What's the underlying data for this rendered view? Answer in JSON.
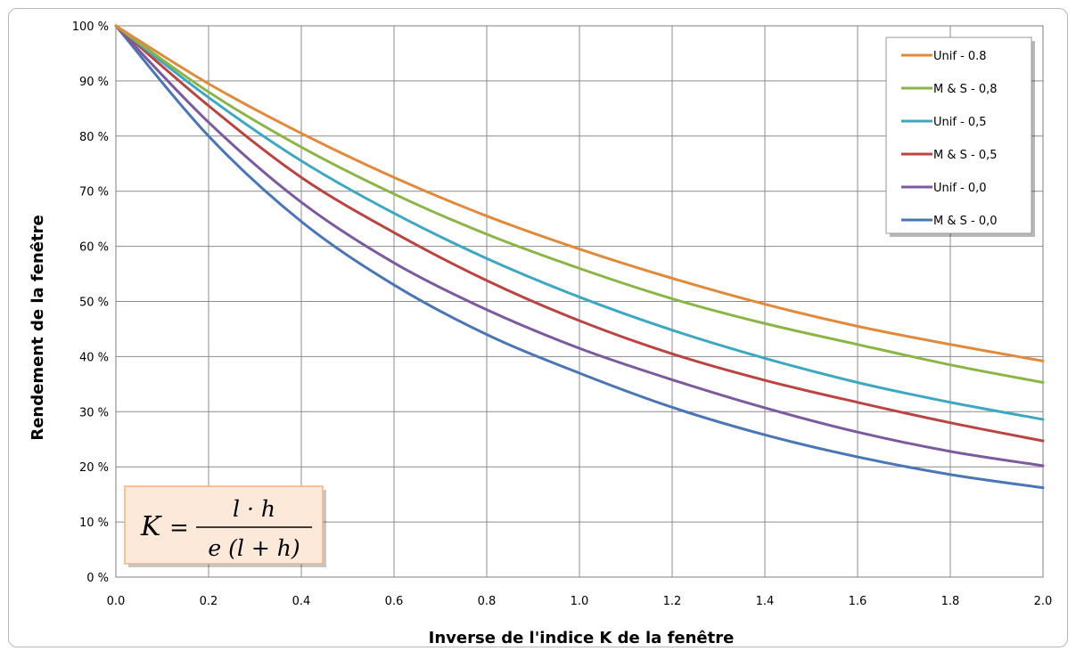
{
  "chart_data": {
    "type": "line",
    "xlabel": "Inverse de l'indice K de la fenêtre",
    "ylabel": "Rendement de la fenêtre",
    "xlim": [
      0,
      2.0
    ],
    "ylim": [
      0,
      100
    ],
    "x_ticks": [
      "0.0",
      "0.2",
      "0.4",
      "0.6",
      "0.8",
      "1.0",
      "1.2",
      "1.4",
      "1.6",
      "1.8",
      "2.0"
    ],
    "y_ticks": [
      "0 %",
      "10 %",
      "20 %",
      "30 %",
      "40 %",
      "50 %",
      "60 %",
      "70 %",
      "80 %",
      "90 %",
      "100 %"
    ],
    "grid": true,
    "legend_position": "top-right",
    "x": [
      0,
      0.2,
      0.4,
      0.6,
      0.8,
      1.0,
      1.2,
      1.4,
      1.6,
      1.8,
      2.0
    ],
    "series": [
      {
        "name": "Unif - 0.8",
        "color": "#e08a3c",
        "values": [
          100,
          89.5,
          80.5,
          72.5,
          65.5,
          59.5,
          54.2,
          49.5,
          45.5,
          42.2,
          39.2
        ]
      },
      {
        "name": "M & S - 0,8",
        "color": "#8cb548",
        "values": [
          100,
          88.0,
          78.0,
          69.5,
          62.2,
          56.0,
          50.5,
          46.0,
          42.2,
          38.5,
          35.3
        ]
      },
      {
        "name": "Unif - 0,5",
        "color": "#3ea7c2",
        "values": [
          100,
          87.0,
          75.5,
          66.0,
          57.8,
          50.8,
          44.8,
          39.7,
          35.3,
          31.7,
          28.6
        ]
      },
      {
        "name": "M & S - 0,5",
        "color": "#b94441",
        "values": [
          100,
          85.5,
          72.5,
          62.5,
          53.8,
          46.5,
          40.5,
          35.7,
          31.7,
          28.0,
          24.7
        ]
      },
      {
        "name": "Unif - 0,0",
        "color": "#7b5a9e",
        "values": [
          100,
          82.5,
          68.0,
          57.0,
          48.5,
          41.5,
          35.8,
          30.7,
          26.3,
          22.8,
          20.2
        ]
      },
      {
        "name": "M & S - 0,0",
        "color": "#4a76b5",
        "values": [
          100,
          80.0,
          64.5,
          53.0,
          44.0,
          37.0,
          30.8,
          25.8,
          21.8,
          18.6,
          16.2
        ]
      }
    ]
  },
  "formula": {
    "lhs": "K",
    "equals": "=",
    "numerator": "l · h",
    "denominator": "e (l + h)",
    "box_fill": "#fde9d9",
    "box_stroke": "#f4b183"
  }
}
